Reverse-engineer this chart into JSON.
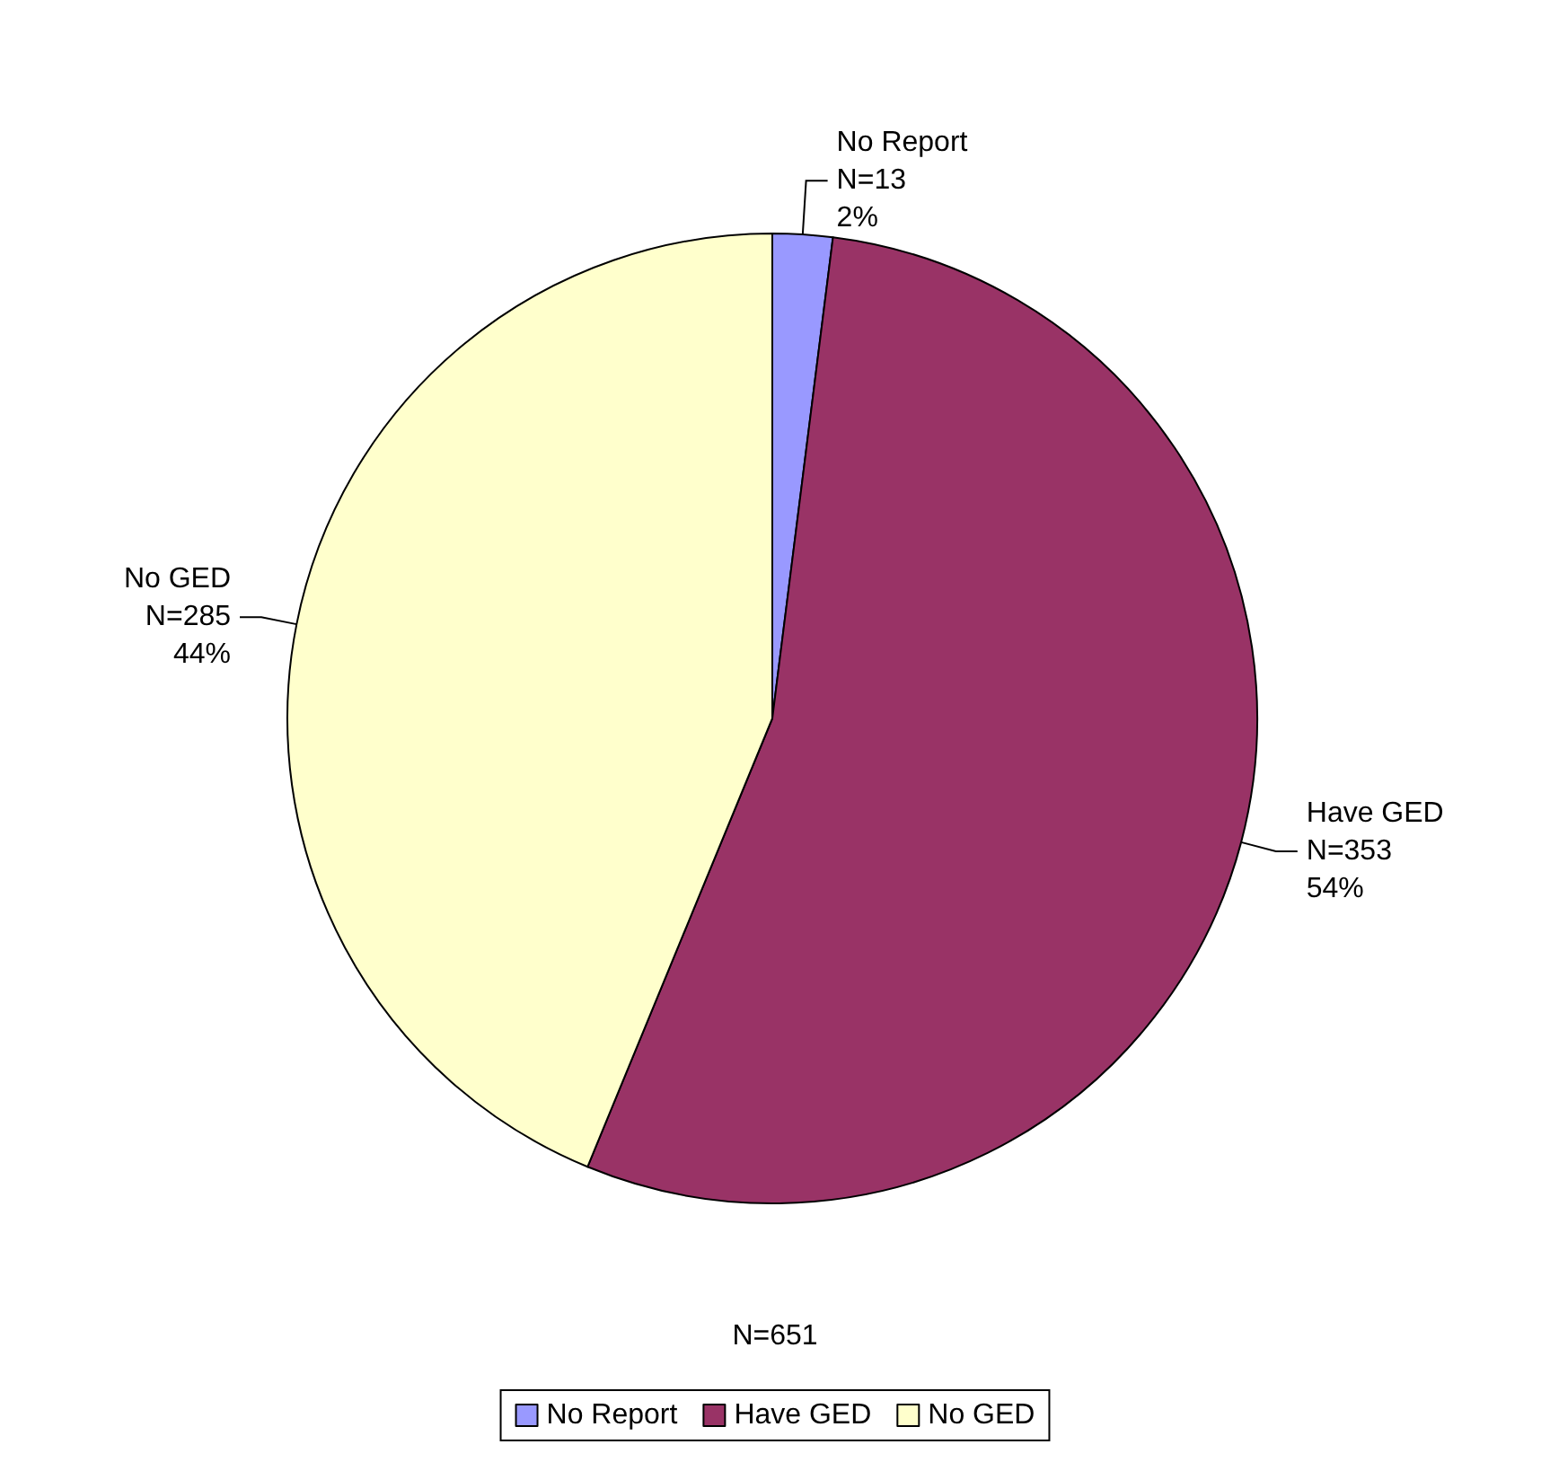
{
  "chart_data": {
    "type": "pie",
    "categories": [
      "No Report",
      "Have GED",
      "No GED"
    ],
    "values": [
      13,
      353,
      285
    ],
    "colors": [
      "#9999ff",
      "#993366",
      "#ffffcc"
    ],
    "value_labels": [
      "N=13\n2%",
      "N=353\n54%",
      "N=285\n44%"
    ],
    "annotations": [
      "N=651"
    ],
    "legend": "bottom"
  }
}
